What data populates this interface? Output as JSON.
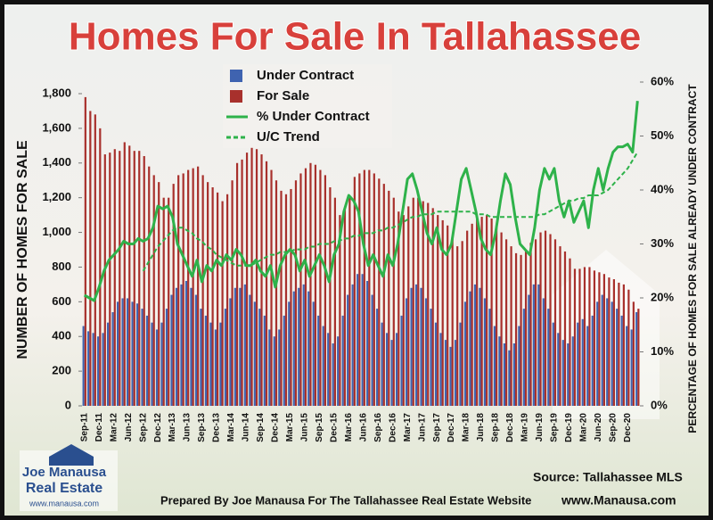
{
  "chart_data": {
    "type": "bar",
    "title": "Homes For Sale In Tallahassee",
    "y_label": "NUMBER OF HOMES FOR SALE",
    "y2_label": "PERCENTAGE OF HOMES FOR SALE ALREADY UNDER CONTRACT",
    "source": "Source: Tallahassee MLS",
    "footer": "Prepared By Joe Manausa For The Tallahassee Real Estate Website",
    "website": "www.Manausa.com",
    "logo": {
      "line1": "Joe Manausa",
      "line2": "Real Estate",
      "url": "www.manausa.com"
    },
    "categories": [
      "Sep-11",
      null,
      null,
      "Dec-11",
      null,
      null,
      "Mar-12",
      null,
      null,
      "Jun-12",
      null,
      null,
      "Sep-12",
      null,
      null,
      "Dec-12",
      null,
      null,
      "Mar-13",
      null,
      null,
      "Jun-13",
      null,
      null,
      "Sep-13",
      null,
      null,
      "Dec-13",
      null,
      null,
      "Mar-14",
      null,
      null,
      "Jun-14",
      null,
      null,
      "Sep-14",
      null,
      null,
      "Dec-14",
      null,
      null,
      "Mar-15",
      null,
      null,
      "Jun-15",
      null,
      null,
      "Sep-15",
      null,
      null,
      "Dec-15",
      null,
      null,
      "Mar-16",
      null,
      null,
      "Jun-16",
      null,
      null,
      "Sep-16",
      null,
      null,
      "Dec-16",
      null,
      null,
      "Mar-17",
      null,
      null,
      "Jun-17",
      null,
      null,
      "Sep-17",
      null,
      null,
      "Dec-17",
      null,
      null,
      "Mar-18",
      null,
      null,
      "Jun-18",
      null,
      null,
      "Sep-18",
      null,
      null,
      "Dec-18",
      null,
      null,
      "Mar-19",
      null,
      null,
      "Jun-19",
      null,
      null,
      "Sep-19",
      null,
      null,
      "Dec-19",
      null,
      null,
      "Mar-20",
      null,
      null,
      "Jun-20",
      null,
      null,
      "Sep-20",
      null,
      null,
      "Dec-20",
      null,
      null
    ],
    "series": [
      {
        "name": "Under Contract",
        "color": "#3f63b0",
        "type": "bar",
        "values": [
          460,
          430,
          420,
          400,
          420,
          480,
          540,
          600,
          620,
          620,
          600,
          590,
          560,
          520,
          480,
          440,
          480,
          560,
          640,
          680,
          700,
          720,
          680,
          640,
          560,
          520,
          480,
          440,
          480,
          560,
          620,
          680,
          680,
          700,
          640,
          600,
          560,
          520,
          440,
          400,
          440,
          520,
          600,
          660,
          680,
          700,
          660,
          600,
          520,
          460,
          420,
          360,
          400,
          520,
          640,
          700,
          760,
          760,
          720,
          640,
          560,
          480,
          420,
          380,
          420,
          520,
          620,
          680,
          700,
          680,
          620,
          560,
          480,
          420,
          380,
          340,
          380,
          480,
          600,
          660,
          700,
          680,
          620,
          560,
          460,
          400,
          360,
          320,
          360,
          460,
          560,
          640,
          700,
          700,
          620,
          560,
          480,
          420,
          380,
          360,
          400,
          480,
          500,
          460,
          520,
          600,
          640,
          620,
          600,
          560,
          520,
          460,
          440,
          540
        ]
      },
      {
        "name": "For Sale",
        "color": "#a8302c",
        "type": "bar",
        "values": [
          1780,
          1700,
          1680,
          1600,
          1450,
          1460,
          1480,
          1470,
          1520,
          1500,
          1470,
          1470,
          1440,
          1380,
          1330,
          1290,
          1200,
          1200,
          1280,
          1330,
          1340,
          1360,
          1370,
          1380,
          1330,
          1290,
          1260,
          1230,
          1180,
          1220,
          1300,
          1400,
          1420,
          1460,
          1490,
          1480,
          1450,
          1410,
          1360,
          1300,
          1240,
          1220,
          1250,
          1300,
          1340,
          1370,
          1400,
          1390,
          1360,
          1330,
          1260,
          1200,
          1100,
          1140,
          1200,
          1320,
          1340,
          1360,
          1360,
          1340,
          1310,
          1280,
          1240,
          1200,
          1120,
          1100,
          1150,
          1200,
          1200,
          1180,
          1170,
          1140,
          1100,
          1070,
          1040,
          980,
          920,
          950,
          1010,
          1050,
          1080,
          1090,
          1100,
          1080,
          1050,
          1000,
          960,
          920,
          880,
          870,
          900,
          940,
          960,
          1000,
          1010,
          990,
          960,
          920,
          890,
          850,
          790,
          790,
          800,
          800,
          780,
          770,
          760,
          740,
          730,
          710,
          700,
          670,
          600,
          560
        ]
      },
      {
        "name": "% Under Contract",
        "color": "#2eb24a",
        "type": "line",
        "axis": "y2",
        "values": [
          20.5,
          20,
          19.5,
          22,
          25,
          27,
          28,
          29,
          30.5,
          30,
          30,
          31,
          30.5,
          31,
          33,
          37,
          36.5,
          37,
          35,
          30,
          28,
          26,
          24,
          27,
          23,
          26,
          25,
          27,
          26,
          28,
          27,
          29,
          28,
          26,
          26,
          27,
          25,
          24,
          26,
          22,
          26,
          28,
          29,
          28,
          25,
          27,
          24,
          26,
          28,
          26,
          23,
          28,
          30,
          36,
          39,
          38,
          36,
          30,
          26,
          28,
          26,
          24,
          28,
          26,
          30,
          36,
          42,
          43,
          40,
          36,
          32,
          30,
          33,
          29,
          28,
          30,
          36,
          42,
          44,
          40,
          36,
          31,
          29,
          28,
          32,
          38,
          43,
          41,
          35,
          30,
          29,
          28,
          33,
          40,
          44,
          42,
          44,
          38,
          35,
          38,
          34,
          36,
          38,
          33,
          40,
          44,
          40,
          44,
          47,
          48,
          48,
          48.5,
          47,
          56.5
        ]
      },
      {
        "name": "U/C Trend",
        "color": "#2eb24a",
        "type": "line",
        "axis": "y2",
        "dashed": true,
        "values": [
          null,
          null,
          null,
          null,
          null,
          null,
          null,
          null,
          null,
          null,
          null,
          null,
          25,
          26.5,
          28,
          29.5,
          30.5,
          31.5,
          32.5,
          33,
          33,
          32.5,
          32,
          31,
          30.5,
          29.5,
          29,
          28,
          27.5,
          27,
          26.5,
          26,
          26,
          26,
          26,
          26.5,
          27,
          27.5,
          28,
          28,
          28.5,
          28.5,
          28.5,
          29,
          29,
          29,
          29.5,
          29.5,
          30,
          30,
          30,
          30.5,
          30.5,
          31,
          31,
          31.5,
          31.5,
          32,
          32,
          32,
          32.5,
          32.5,
          33,
          33,
          33.5,
          34,
          34.5,
          35,
          35,
          35.5,
          35.5,
          35.5,
          36,
          36,
          36,
          36,
          36,
          36,
          36,
          36,
          35.5,
          35.5,
          35.5,
          35,
          35,
          35,
          35,
          35,
          35,
          35,
          35,
          35,
          35,
          35.5,
          35.5,
          36,
          36.5,
          37,
          37.5,
          38,
          38,
          38.5,
          38.5,
          39,
          39,
          39,
          39.5,
          40,
          41,
          42,
          43,
          44,
          45.5,
          47
        ]
      }
    ],
    "ylim": [
      0,
      1800
    ],
    "yticks": [
      0,
      200,
      400,
      600,
      800,
      {
        "value": 1000,
        "label": "1,000"
      },
      {
        "value": 1200,
        "label": "1,200"
      },
      {
        "value": 1400,
        "label": "1,400"
      },
      {
        "value": 1600,
        "label": "1,600"
      },
      {
        "value": 1800,
        "label": "1,800"
      }
    ],
    "y2lim": [
      0,
      60
    ],
    "y2ticks": [
      {
        "value": 0,
        "label": "0%"
      },
      {
        "value": 10,
        "label": "10%"
      },
      {
        "value": 20,
        "label": "20%"
      },
      {
        "value": 30,
        "label": "30%"
      },
      {
        "value": 40,
        "label": "40%"
      },
      {
        "value": 50,
        "label": "50%"
      },
      {
        "value": 60,
        "label": "60%"
      }
    ]
  }
}
